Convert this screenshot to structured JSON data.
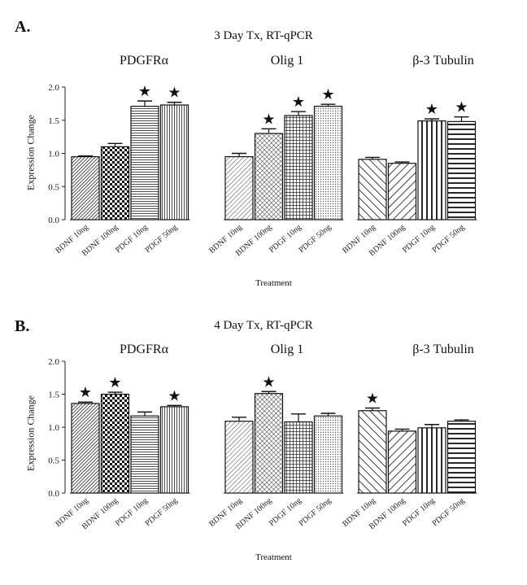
{
  "chart_data": [
    {
      "type": "bar",
      "panel_label": "A.",
      "title": "3 Day Tx, RT-qPCR",
      "xlabel": "Treatment",
      "ylabel": "Expression Change",
      "ylim": [
        0,
        2.0
      ],
      "yticks": [
        "0.0",
        "0.5",
        "1.0",
        "1.5",
        "2.0"
      ],
      "groups": [
        {
          "name": "PDGFRα",
          "categories": [
            "BDNF 10ng",
            "BDNF 100ng",
            "PDGF 10ng",
            "PDGF 50ng"
          ],
          "values": [
            0.95,
            1.1,
            1.71,
            1.73
          ],
          "errors": [
            0.01,
            0.05,
            0.08,
            0.04
          ],
          "significant": [
            false,
            false,
            true,
            true
          ],
          "patterns": [
            "dense-diag",
            "checker",
            "hlines",
            "vlines"
          ]
        },
        {
          "name": "Olig 1",
          "categories": [
            "BDNF 10ng",
            "BDNF 100ng",
            "PDGF 10ng",
            "PDGF 50ng"
          ],
          "values": [
            0.95,
            1.3,
            1.57,
            1.71
          ],
          "errors": [
            0.05,
            0.07,
            0.06,
            0.03
          ],
          "significant": [
            false,
            true,
            true,
            true
          ],
          "patterns": [
            "diag-fine",
            "diag-cross",
            "grid",
            "dots"
          ]
        },
        {
          "name": "β-3 Tubulin",
          "categories": [
            "BDNF 10ng",
            "BDNF 100ng",
            "PDGF 10ng",
            "PDGF 50ng"
          ],
          "values": [
            0.91,
            0.85,
            1.49,
            1.48
          ],
          "errors": [
            0.03,
            0.02,
            0.03,
            0.07
          ],
          "significant": [
            false,
            false,
            true,
            true
          ],
          "patterns": [
            "back-diag",
            "fwd-diag",
            "vstripes",
            "hstripes"
          ]
        }
      ]
    },
    {
      "type": "bar",
      "panel_label": "B.",
      "title": "4 Day Tx, RT-qPCR",
      "xlabel": "Treatment",
      "ylabel": "Expression Change",
      "ylim": [
        0,
        2.0
      ],
      "yticks": [
        "0.0",
        "0.5",
        "1.0",
        "1.5",
        "2.0"
      ],
      "groups": [
        {
          "name": "PDGFRα",
          "categories": [
            "BDNF 10ng",
            "BDNF 100ng",
            "PDGF 10ng",
            "PDGF 50ng"
          ],
          "values": [
            1.36,
            1.5,
            1.17,
            1.31
          ],
          "errors": [
            0.02,
            0.03,
            0.06,
            0.02
          ],
          "significant": [
            true,
            true,
            false,
            true
          ],
          "patterns": [
            "dense-diag",
            "checker",
            "hlines",
            "vlines"
          ]
        },
        {
          "name": "Olig 1",
          "categories": [
            "BDNF 10ng",
            "BDNF 100ng",
            "PDGF 10ng",
            "PDGF 50ng"
          ],
          "values": [
            1.09,
            1.51,
            1.08,
            1.17
          ],
          "errors": [
            0.06,
            0.03,
            0.12,
            0.04
          ],
          "significant": [
            false,
            true,
            false,
            false
          ],
          "patterns": [
            "diag-fine",
            "diag-cross",
            "grid",
            "dots"
          ]
        },
        {
          "name": "β-3 Tubulin",
          "categories": [
            "BDNF 10ng",
            "BDNF 100ng",
            "PDGF 10ng",
            "PDGF 50ng"
          ],
          "values": [
            1.25,
            0.94,
            0.99,
            1.09
          ],
          "errors": [
            0.04,
            0.03,
            0.05,
            0.02
          ],
          "significant": [
            true,
            false,
            false,
            false
          ],
          "patterns": [
            "back-diag",
            "fwd-diag",
            "vstripes",
            "hstripes"
          ]
        }
      ]
    }
  ]
}
